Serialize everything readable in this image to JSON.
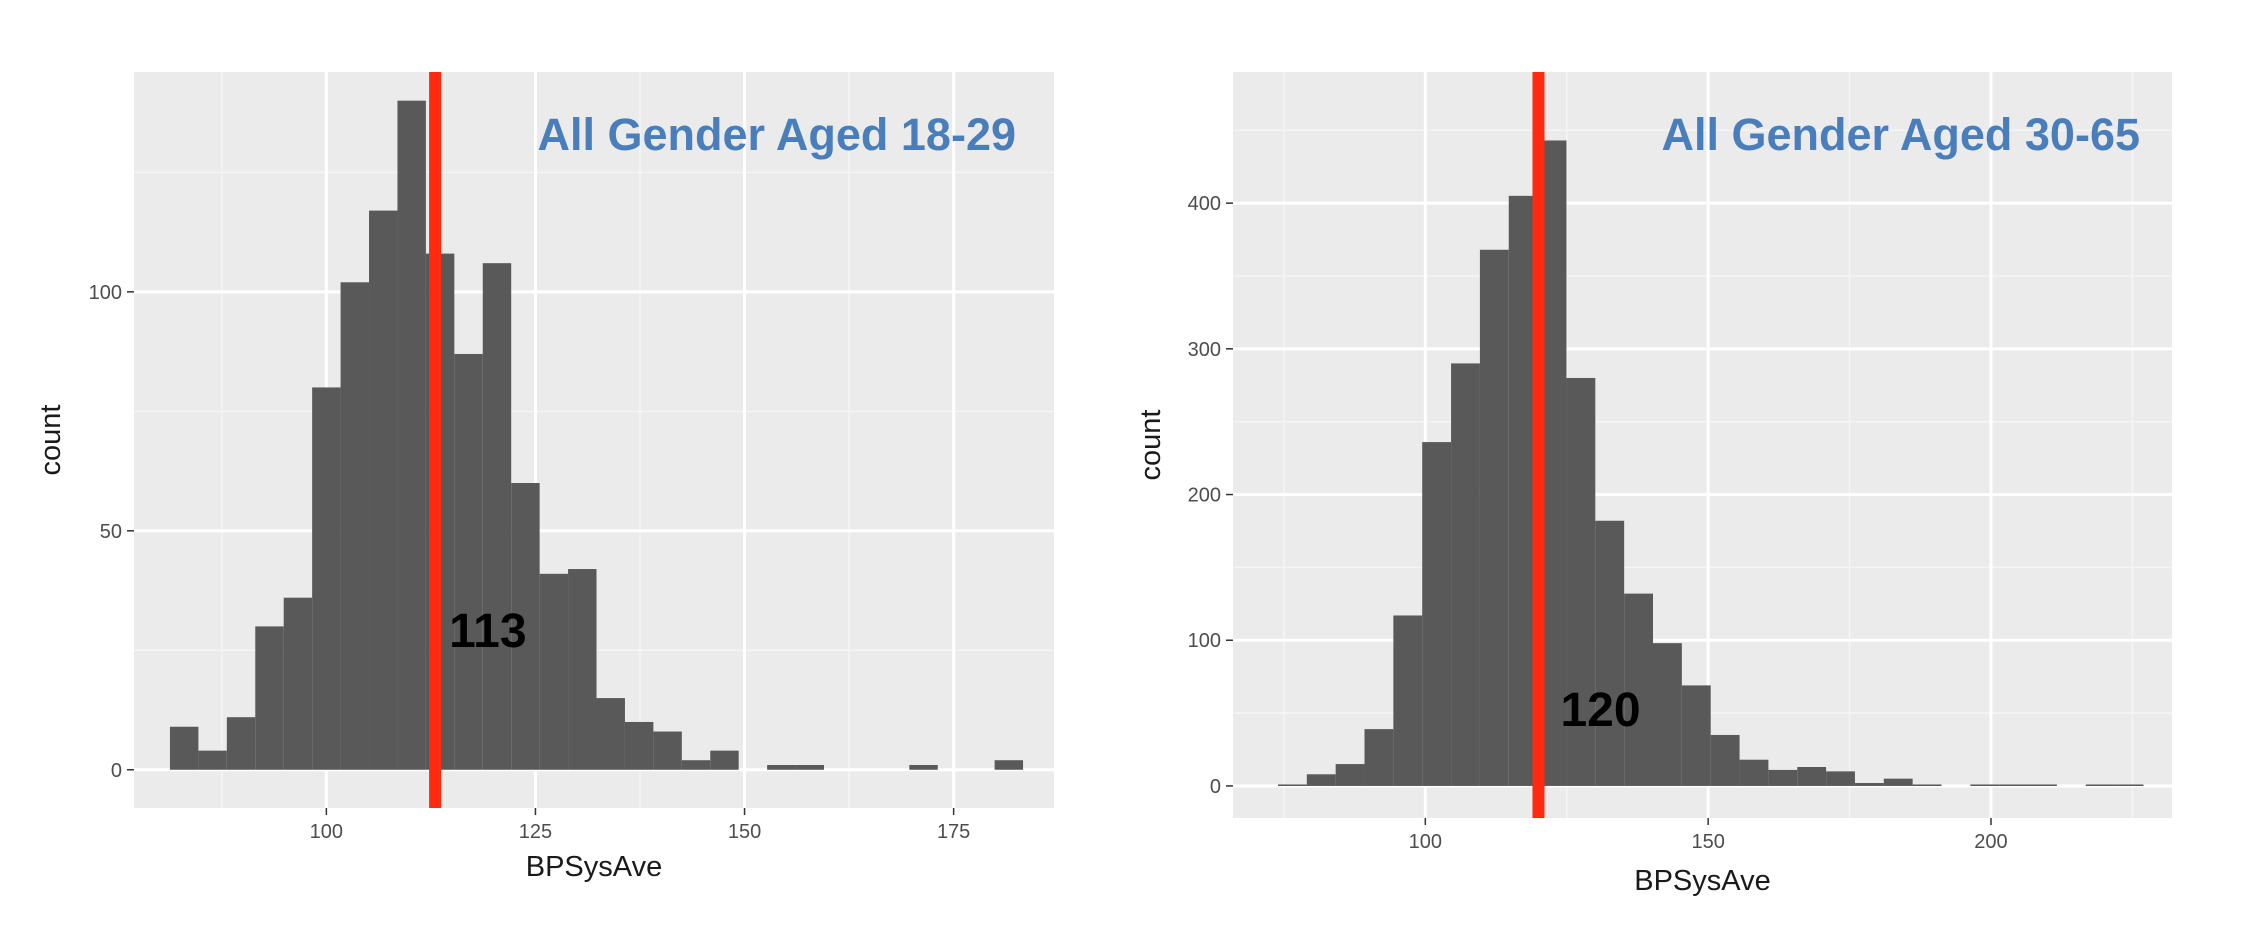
{
  "chart_data": [
    {
      "type": "bar",
      "title": "All Gender Aged 18-29",
      "xlabel": "BPSysAve",
      "ylabel": "count",
      "xlim": [
        77,
        187
      ],
      "ylim": [
        -8,
        146
      ],
      "x_ticks": [
        100,
        125,
        150,
        175
      ],
      "y_ticks": [
        0,
        50,
        100
      ],
      "bin_width": 3.4,
      "bins": [
        {
          "x": 83.0,
          "count": 9
        },
        {
          "x": 86.4,
          "count": 4
        },
        {
          "x": 89.8,
          "count": 11
        },
        {
          "x": 93.2,
          "count": 30
        },
        {
          "x": 96.6,
          "count": 36
        },
        {
          "x": 100.0,
          "count": 80
        },
        {
          "x": 103.4,
          "count": 102
        },
        {
          "x": 106.8,
          "count": 117
        },
        {
          "x": 110.2,
          "count": 140
        },
        {
          "x": 113.6,
          "count": 108
        },
        {
          "x": 117.0,
          "count": 87
        },
        {
          "x": 120.4,
          "count": 106
        },
        {
          "x": 123.8,
          "count": 60
        },
        {
          "x": 127.2,
          "count": 41
        },
        {
          "x": 130.6,
          "count": 42
        },
        {
          "x": 134.0,
          "count": 15
        },
        {
          "x": 137.4,
          "count": 10
        },
        {
          "x": 140.8,
          "count": 8
        },
        {
          "x": 144.2,
          "count": 2
        },
        {
          "x": 147.6,
          "count": 4
        },
        {
          "x": 154.4,
          "count": 1
        },
        {
          "x": 157.8,
          "count": 1
        },
        {
          "x": 171.4,
          "count": 1
        },
        {
          "x": 181.6,
          "count": 2
        }
      ],
      "mean_line": 113,
      "mean_label": "113",
      "mean_color": "#ff2a0f",
      "bar_color": "#595959"
    },
    {
      "type": "bar",
      "title": "All Gender Aged 30-65",
      "xlabel": "BPSysAve",
      "ylabel": "count",
      "xlim": [
        66,
        232
      ],
      "ylim": [
        -22,
        490
      ],
      "x_ticks": [
        100,
        150,
        200
      ],
      "y_ticks": [
        0,
        100,
        200,
        300,
        400
      ],
      "bin_width": 5.1,
      "bins": [
        {
          "x": 76.5,
          "count": 1
        },
        {
          "x": 81.6,
          "count": 8
        },
        {
          "x": 86.7,
          "count": 15
        },
        {
          "x": 91.8,
          "count": 39
        },
        {
          "x": 96.9,
          "count": 117
        },
        {
          "x": 102.0,
          "count": 236
        },
        {
          "x": 107.1,
          "count": 290
        },
        {
          "x": 112.2,
          "count": 368
        },
        {
          "x": 117.3,
          "count": 405
        },
        {
          "x": 122.4,
          "count": 443
        },
        {
          "x": 127.5,
          "count": 280
        },
        {
          "x": 132.6,
          "count": 182
        },
        {
          "x": 137.7,
          "count": 132
        },
        {
          "x": 142.8,
          "count": 98
        },
        {
          "x": 147.9,
          "count": 69
        },
        {
          "x": 153.0,
          "count": 35
        },
        {
          "x": 158.1,
          "count": 18
        },
        {
          "x": 163.2,
          "count": 11
        },
        {
          "x": 168.3,
          "count": 13
        },
        {
          "x": 173.4,
          "count": 10
        },
        {
          "x": 178.5,
          "count": 2
        },
        {
          "x": 183.6,
          "count": 5
        },
        {
          "x": 188.7,
          "count": 1
        },
        {
          "x": 198.9,
          "count": 1
        },
        {
          "x": 204.0,
          "count": 1
        },
        {
          "x": 209.1,
          "count": 1
        },
        {
          "x": 219.3,
          "count": 1
        },
        {
          "x": 224.4,
          "count": 1
        }
      ],
      "mean_line": 120,
      "mean_label": "120",
      "mean_color": "#ff2a0f",
      "bar_color": "#595959"
    }
  ]
}
